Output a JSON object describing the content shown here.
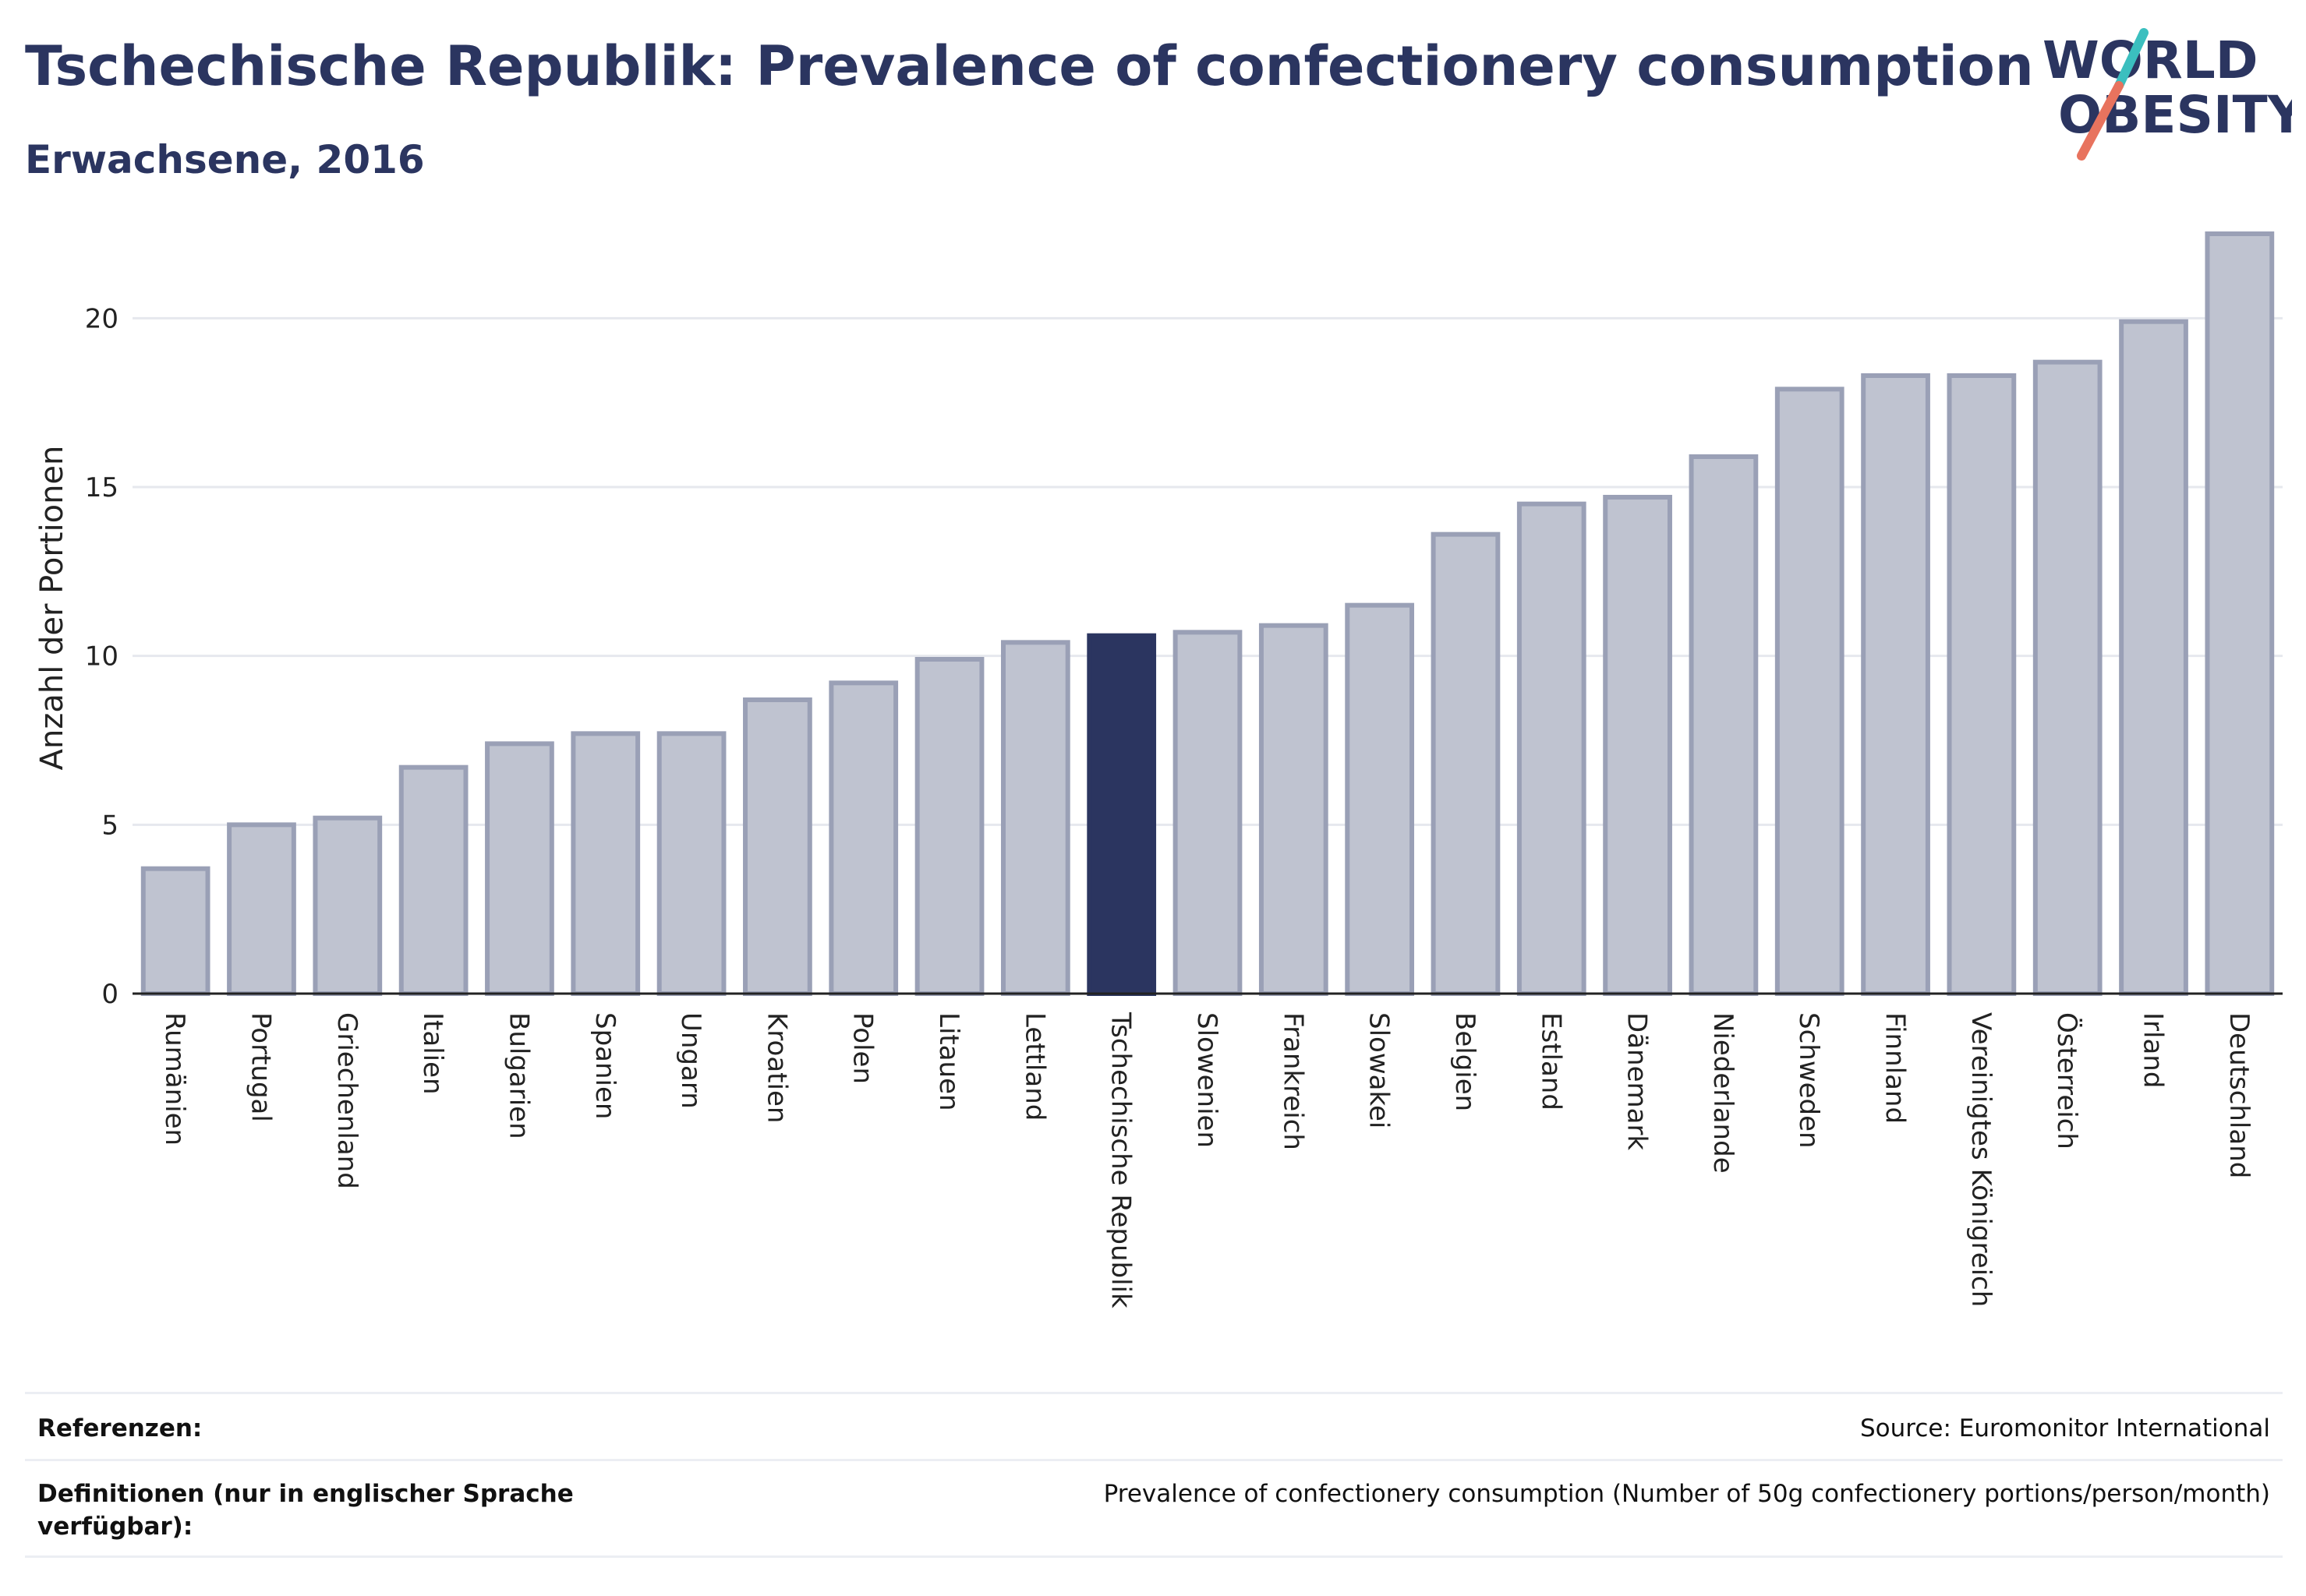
{
  "header": {
    "title": "Tschechische Republik: Prevalence of confectionery consumption",
    "subtitle": "Erwachsene, 2016"
  },
  "logo": {
    "line1": "WORLD",
    "line2": "OBESITY",
    "icon": "world-obesity-logo"
  },
  "colors": {
    "bar": "#bfc3d0",
    "bar_stroke": "#9aa0b6",
    "highlight": "#2b3560",
    "grid": "#e6e8ee",
    "axis": "#222222"
  },
  "chart_data": {
    "type": "bar",
    "ylabel": "Anzahl der Portionen",
    "ylim": [
      0,
      22.5
    ],
    "yticks": [
      0,
      5,
      10,
      15,
      20
    ],
    "grid": true,
    "highlight": "Tschechische Republik",
    "categories": [
      "Rumänien",
      "Portugal",
      "Griechenland",
      "Italien",
      "Bulgarien",
      "Spanien",
      "Ungarn",
      "Kroatien",
      "Polen",
      "Litauen",
      "Lettland",
      "Tschechische Republik",
      "Slowenien",
      "Frankreich",
      "Slowakei",
      "Belgien",
      "Estland",
      "Dänemark",
      "Niederlande",
      "Schweden",
      "Finnland",
      "Vereinigtes Königreich",
      "Österreich",
      "Irland",
      "Deutschland"
    ],
    "values": [
      3.7,
      5.0,
      5.2,
      6.7,
      7.4,
      7.7,
      7.7,
      8.7,
      9.2,
      9.9,
      10.4,
      10.6,
      10.7,
      10.9,
      11.5,
      13.6,
      14.5,
      14.7,
      15.9,
      17.9,
      18.3,
      18.3,
      18.7,
      19.9,
      22.5
    ]
  },
  "footer": {
    "references_label": "Referenzen:",
    "references_value": "Source: Euromonitor International",
    "definitions_label": "Definitionen (nur in englischer Sprache verfügbar):",
    "definitions_value": "Prevalence of confectionery consumption (Number of 50g confectionery portions/person/month)"
  }
}
